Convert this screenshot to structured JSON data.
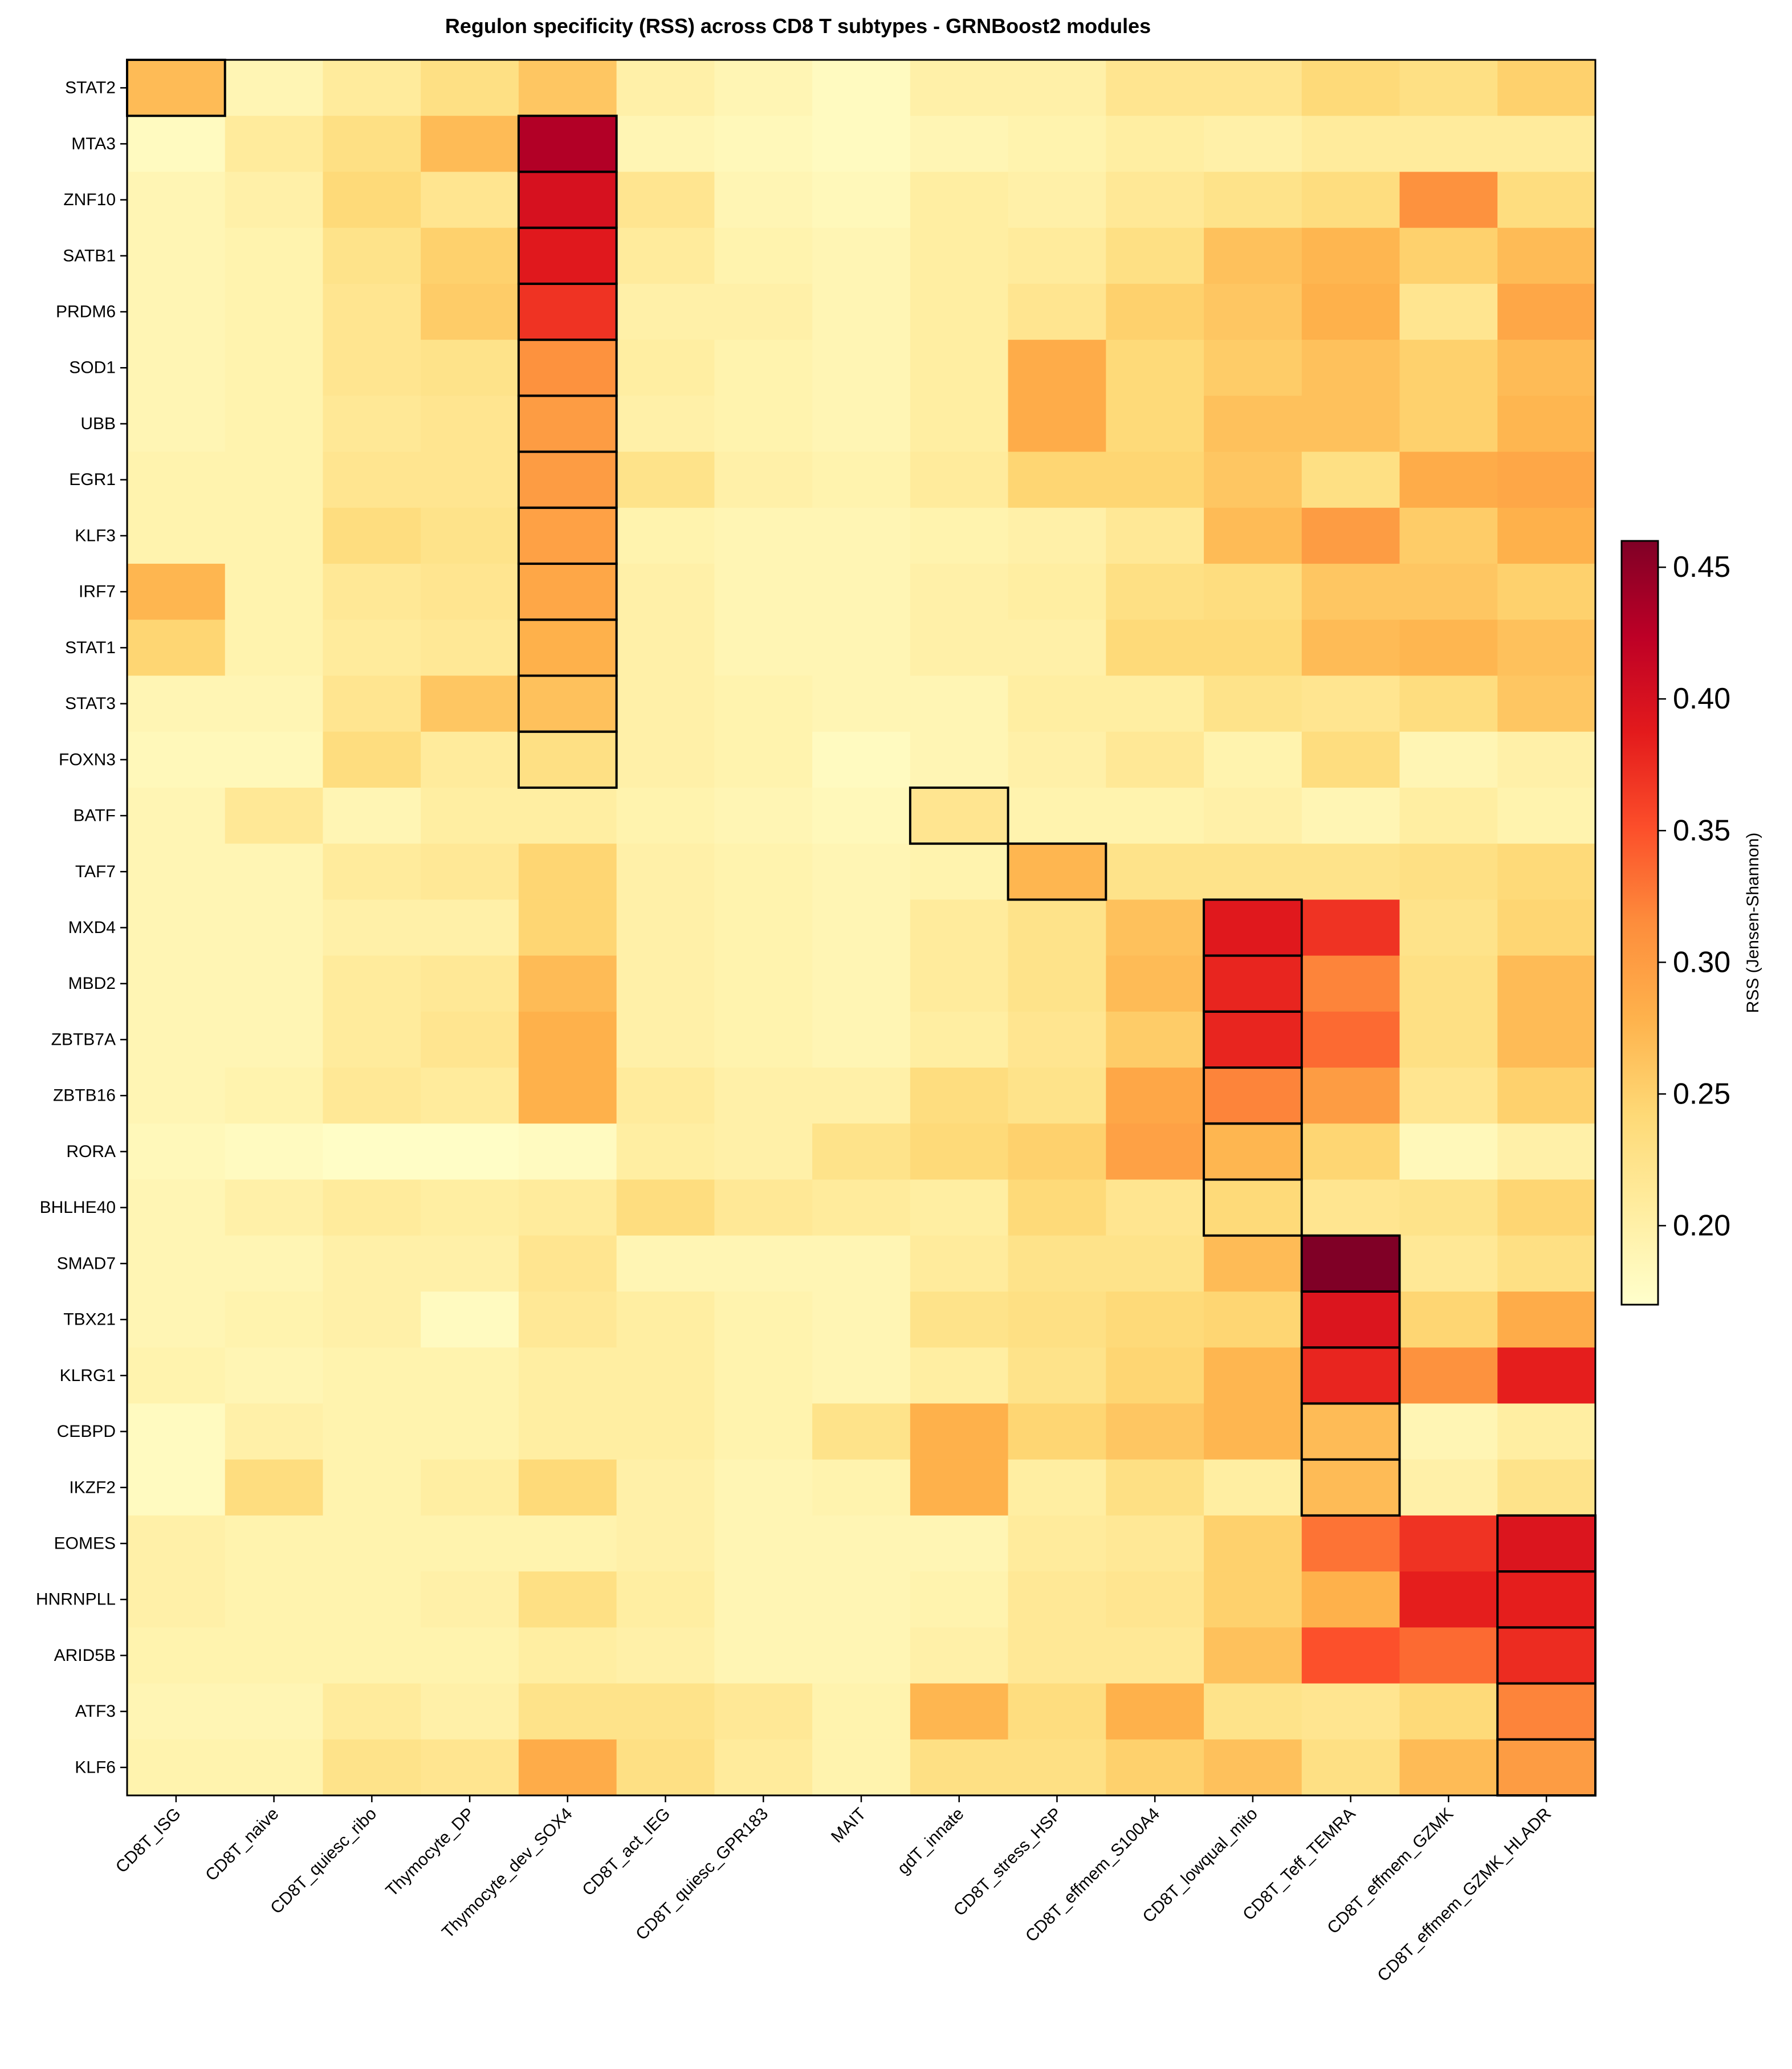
{
  "chart_data": {
    "type": "heatmap",
    "title": "Regulon specificity (RSS) across CD8 T subtypes - GRNBoost2 modules",
    "colorbar": {
      "label": "RSS (Jensen-Shannon)",
      "range": [
        0.17,
        0.46
      ],
      "ticks": [
        0.2,
        0.25,
        0.3,
        0.35,
        0.4,
        0.45
      ],
      "tick_labels": [
        "0.20",
        "0.25",
        "0.30",
        "0.35",
        "0.40",
        "0.45"
      ],
      "colormap": "YlOrRd",
      "colormap_stops": [
        "#ffffcc",
        "#ffeda0",
        "#fed976",
        "#feb24c",
        "#fd8d3c",
        "#fc4e2a",
        "#e31a1c",
        "#bd0026",
        "#800026"
      ]
    },
    "rows": [
      "STAT2",
      "MTA3",
      "ZNF10",
      "SATB1",
      "PRDM6",
      "SOD1",
      "UBB",
      "EGR1",
      "KLF3",
      "IRF7",
      "STAT1",
      "STAT3",
      "FOXN3",
      "BATF",
      "TAF7",
      "MXD4",
      "MBD2",
      "ZBTB7A",
      "ZBTB16",
      "RORA",
      "BHLHE40",
      "SMAD7",
      "TBX21",
      "KLRG1",
      "CEBPD",
      "IKZF2",
      "EOMES",
      "HNRNPLL",
      "ARID5B",
      "ATF3",
      "KLF6"
    ],
    "columns": [
      "CD8T_ISG",
      "CD8T_naive",
      "CD8T_quiesc_ribo",
      "Thymocyte_DP",
      "Thymocyte_dev_SOX4",
      "CD8T_act_IEG",
      "CD8T_quiesc_GPR183",
      "MAIT",
      "gdT_innate",
      "CD8T_stress_HSP",
      "CD8T_effmem_S100A4",
      "CD8T_lowqual_mito",
      "CD8T_Teff_TEMRA",
      "CD8T_effmem_GZMK",
      "CD8T_effmem_GZMK_HLADR"
    ],
    "values": [
      [
        0.27,
        0.19,
        0.21,
        0.23,
        0.26,
        0.2,
        0.19,
        0.18,
        0.2,
        0.2,
        0.22,
        0.22,
        0.24,
        0.23,
        0.25
      ],
      [
        0.18,
        0.21,
        0.23,
        0.27,
        0.43,
        0.19,
        0.185,
        0.18,
        0.19,
        0.195,
        0.205,
        0.2,
        0.21,
        0.21,
        0.21
      ],
      [
        0.19,
        0.2,
        0.24,
        0.22,
        0.4,
        0.22,
        0.19,
        0.185,
        0.205,
        0.2,
        0.215,
        0.225,
        0.235,
        0.31,
        0.235
      ],
      [
        0.19,
        0.195,
        0.225,
        0.25,
        0.39,
        0.21,
        0.195,
        0.19,
        0.205,
        0.21,
        0.23,
        0.265,
        0.275,
        0.25,
        0.27
      ],
      [
        0.19,
        0.195,
        0.22,
        0.255,
        0.37,
        0.2,
        0.2,
        0.19,
        0.205,
        0.22,
        0.25,
        0.26,
        0.28,
        0.22,
        0.29
      ],
      [
        0.19,
        0.195,
        0.22,
        0.225,
        0.31,
        0.205,
        0.195,
        0.19,
        0.205,
        0.285,
        0.24,
        0.255,
        0.265,
        0.25,
        0.27
      ],
      [
        0.19,
        0.195,
        0.215,
        0.22,
        0.3,
        0.2,
        0.195,
        0.19,
        0.205,
        0.285,
        0.24,
        0.265,
        0.265,
        0.25,
        0.275
      ],
      [
        0.195,
        0.195,
        0.22,
        0.22,
        0.3,
        0.225,
        0.2,
        0.195,
        0.21,
        0.245,
        0.245,
        0.26,
        0.23,
        0.285,
        0.29
      ],
      [
        0.195,
        0.195,
        0.235,
        0.225,
        0.295,
        0.195,
        0.19,
        0.19,
        0.195,
        0.2,
        0.215,
        0.27,
        0.3,
        0.255,
        0.28
      ],
      [
        0.275,
        0.195,
        0.215,
        0.22,
        0.29,
        0.2,
        0.19,
        0.19,
        0.2,
        0.205,
        0.23,
        0.235,
        0.26,
        0.26,
        0.25
      ],
      [
        0.245,
        0.195,
        0.21,
        0.215,
        0.28,
        0.2,
        0.19,
        0.19,
        0.2,
        0.2,
        0.24,
        0.24,
        0.27,
        0.275,
        0.265
      ],
      [
        0.19,
        0.19,
        0.22,
        0.26,
        0.265,
        0.2,
        0.195,
        0.19,
        0.19,
        0.205,
        0.205,
        0.225,
        0.22,
        0.235,
        0.26
      ],
      [
        0.185,
        0.185,
        0.235,
        0.21,
        0.23,
        0.2,
        0.195,
        0.18,
        0.19,
        0.2,
        0.215,
        0.195,
        0.235,
        0.19,
        0.2
      ],
      [
        0.19,
        0.215,
        0.19,
        0.205,
        0.205,
        0.195,
        0.19,
        0.185,
        0.22,
        0.195,
        0.195,
        0.2,
        0.19,
        0.205,
        0.195
      ],
      [
        0.19,
        0.19,
        0.21,
        0.215,
        0.245,
        0.2,
        0.195,
        0.19,
        0.195,
        0.275,
        0.225,
        0.225,
        0.225,
        0.23,
        0.24
      ],
      [
        0.19,
        0.19,
        0.2,
        0.2,
        0.245,
        0.2,
        0.195,
        0.19,
        0.21,
        0.225,
        0.265,
        0.39,
        0.37,
        0.225,
        0.245
      ],
      [
        0.19,
        0.19,
        0.21,
        0.215,
        0.27,
        0.2,
        0.195,
        0.19,
        0.21,
        0.225,
        0.27,
        0.38,
        0.32,
        0.23,
        0.27
      ],
      [
        0.19,
        0.19,
        0.21,
        0.22,
        0.28,
        0.2,
        0.195,
        0.19,
        0.205,
        0.22,
        0.255,
        0.38,
        0.335,
        0.23,
        0.27
      ],
      [
        0.19,
        0.195,
        0.215,
        0.21,
        0.28,
        0.21,
        0.2,
        0.2,
        0.235,
        0.225,
        0.29,
        0.32,
        0.3,
        0.22,
        0.25
      ],
      [
        0.185,
        0.18,
        0.175,
        0.175,
        0.18,
        0.205,
        0.2,
        0.225,
        0.24,
        0.25,
        0.295,
        0.275,
        0.245,
        0.185,
        0.2
      ],
      [
        0.19,
        0.2,
        0.21,
        0.205,
        0.21,
        0.235,
        0.215,
        0.21,
        0.205,
        0.24,
        0.22,
        0.24,
        0.22,
        0.225,
        0.245
      ],
      [
        0.19,
        0.19,
        0.2,
        0.2,
        0.22,
        0.19,
        0.19,
        0.19,
        0.21,
        0.225,
        0.225,
        0.27,
        0.46,
        0.215,
        0.23
      ],
      [
        0.19,
        0.195,
        0.2,
        0.18,
        0.215,
        0.205,
        0.195,
        0.19,
        0.225,
        0.23,
        0.24,
        0.245,
        0.395,
        0.245,
        0.285
      ],
      [
        0.195,
        0.19,
        0.195,
        0.195,
        0.205,
        0.205,
        0.195,
        0.19,
        0.205,
        0.225,
        0.245,
        0.275,
        0.38,
        0.31,
        0.385
      ],
      [
        0.18,
        0.2,
        0.195,
        0.195,
        0.205,
        0.205,
        0.195,
        0.225,
        0.28,
        0.245,
        0.26,
        0.275,
        0.27,
        0.19,
        0.205
      ],
      [
        0.18,
        0.235,
        0.195,
        0.205,
        0.24,
        0.2,
        0.19,
        0.195,
        0.28,
        0.205,
        0.23,
        0.205,
        0.27,
        0.2,
        0.225
      ],
      [
        0.2,
        0.195,
        0.195,
        0.195,
        0.195,
        0.2,
        0.19,
        0.19,
        0.19,
        0.21,
        0.215,
        0.25,
        0.33,
        0.37,
        0.395
      ],
      [
        0.2,
        0.195,
        0.195,
        0.2,
        0.23,
        0.205,
        0.19,
        0.19,
        0.195,
        0.215,
        0.22,
        0.25,
        0.28,
        0.385,
        0.385
      ],
      [
        0.195,
        0.195,
        0.195,
        0.195,
        0.205,
        0.2,
        0.19,
        0.19,
        0.2,
        0.215,
        0.215,
        0.265,
        0.35,
        0.335,
        0.375
      ],
      [
        0.19,
        0.19,
        0.21,
        0.2,
        0.225,
        0.225,
        0.215,
        0.195,
        0.275,
        0.235,
        0.28,
        0.225,
        0.22,
        0.24,
        0.32
      ],
      [
        0.195,
        0.195,
        0.225,
        0.22,
        0.285,
        0.23,
        0.21,
        0.195,
        0.23,
        0.23,
        0.25,
        0.265,
        0.23,
        0.27,
        0.3
      ]
    ],
    "highlighted_cells": [
      [
        0,
        0
      ],
      [
        1,
        4
      ],
      [
        2,
        4
      ],
      [
        3,
        4
      ],
      [
        4,
        4
      ],
      [
        5,
        4
      ],
      [
        6,
        4
      ],
      [
        7,
        4
      ],
      [
        8,
        4
      ],
      [
        9,
        4
      ],
      [
        10,
        4
      ],
      [
        11,
        4
      ],
      [
        12,
        4
      ],
      [
        13,
        8
      ],
      [
        14,
        9
      ],
      [
        15,
        11
      ],
      [
        16,
        11
      ],
      [
        17,
        11
      ],
      [
        18,
        11
      ],
      [
        19,
        11
      ],
      [
        20,
        11
      ],
      [
        21,
        12
      ],
      [
        22,
        12
      ],
      [
        23,
        12
      ],
      [
        24,
        12
      ],
      [
        25,
        12
      ],
      [
        26,
        14
      ],
      [
        27,
        14
      ],
      [
        28,
        14
      ],
      [
        29,
        14
      ],
      [
        30,
        14
      ]
    ]
  }
}
